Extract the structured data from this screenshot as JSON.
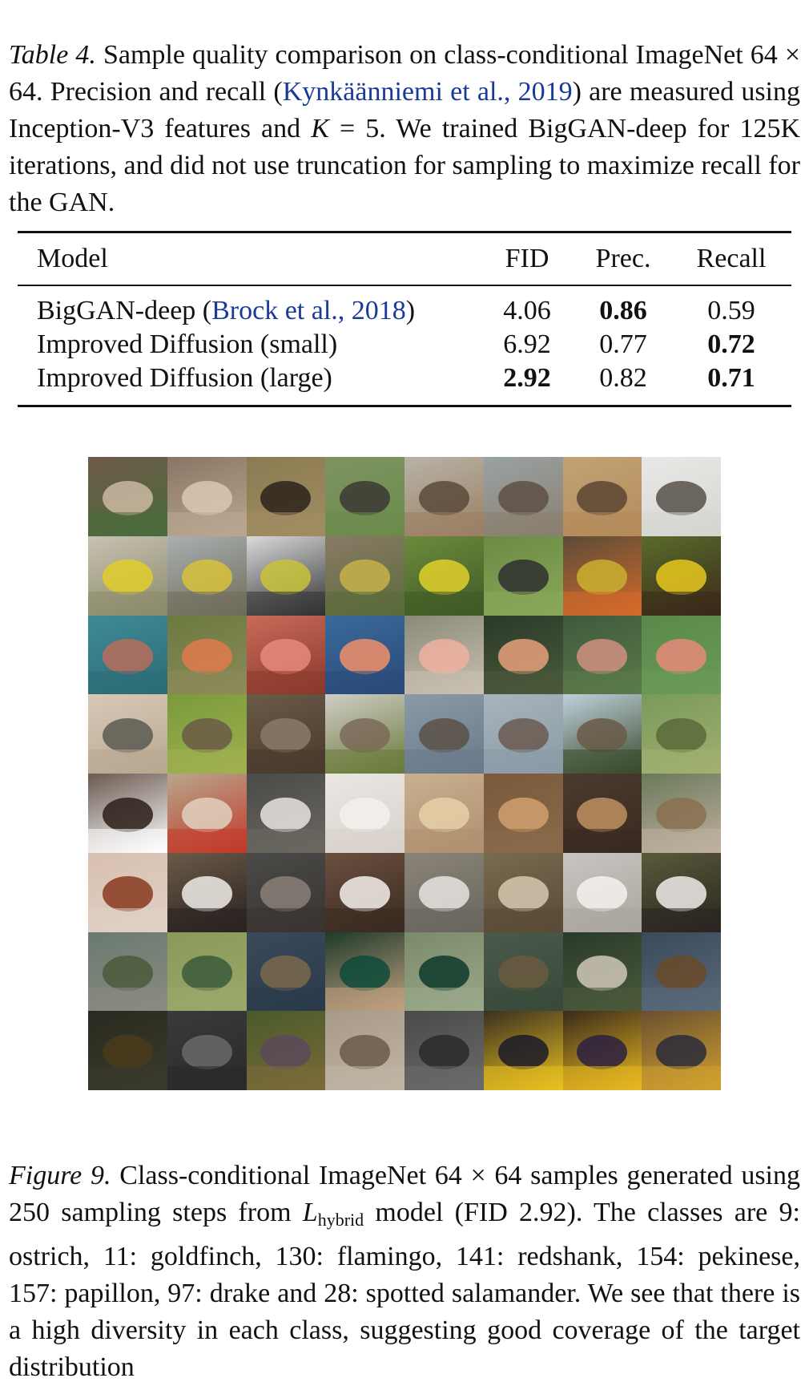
{
  "table_caption": {
    "label": "Table 4.",
    "text_1": " Sample quality comparison on class-conditional ImageNet 64 × 64. Precision and recall (",
    "citation": "Kynkäänniemi et al., 2019",
    "text_2": ") are measured using Inception-V3 features and ",
    "k_var": "K",
    "text_3": " = 5. We trained BigGAN-deep for 125K iterations, and did not use truncation for sampling to maximize recall for the GAN."
  },
  "table": {
    "headers": {
      "model": "Model",
      "fid": "FID",
      "prec": "Prec.",
      "recall": "Recall"
    },
    "rows": [
      {
        "model": "BigGAN-deep (",
        "citation": "Brock et al., 2018",
        "model_suffix": ")",
        "fid": "4.06",
        "prec": "0.86",
        "recall": "0.59"
      },
      {
        "model": "Improved Diffusion (small)",
        "citation": "",
        "model_suffix": "",
        "fid": "6.92",
        "prec": "0.77",
        "recall": "0.72"
      },
      {
        "model": "Improved Diffusion (large)",
        "citation": "",
        "model_suffix": "",
        "fid": "2.92",
        "prec": "0.82",
        "recall": "0.71"
      }
    ],
    "bold": [
      [
        "prec"
      ],
      [
        "recall"
      ],
      [
        "fid",
        "recall"
      ]
    ]
  },
  "sample_grid": {
    "rows": [
      {
        "class": "ostrich",
        "colors": [
          [
            "#6e5a48",
            "#cdb9a2",
            "#4a6b3c"
          ],
          [
            "#8a7564",
            "#d9c7b4",
            "#b9a891"
          ],
          [
            "#8c7a52",
            "#2a221a",
            "#a08d62"
          ],
          [
            "#7f9461",
            "#3b3834",
            "#6b8b4c"
          ],
          [
            "#b8b3a8",
            "#5a4a3a",
            "#9b7f62"
          ],
          [
            "#9aa2a4",
            "#5e4f45",
            "#8a7f70"
          ],
          [
            "#c2a275",
            "#5b4533",
            "#b48b5a"
          ],
          [
            "#e8e8e6",
            "#565048",
            "#d5d5d2"
          ]
        ]
      },
      {
        "class": "goldfinch",
        "colors": [
          [
            "#c7c2b2",
            "#e2cc2c",
            "#8b8a6a"
          ],
          [
            "#a9b0b1",
            "#d8c23b",
            "#6f6b5a"
          ],
          [
            "#d9dadb",
            "#c9c23a",
            "#333333"
          ],
          [
            "#8a7a66",
            "#c4b34a",
            "#5a6b3a"
          ],
          [
            "#6d8b3c",
            "#e2d02c",
            "#3f5a25"
          ],
          [
            "#6b8b44",
            "#2f2f2f",
            "#88a85a"
          ],
          [
            "#5c4c38",
            "#c9b030",
            "#d46a2a"
          ],
          [
            "#5a6b2c",
            "#e8c81e",
            "#3a2a1a"
          ]
        ]
      },
      {
        "class": "flamingo",
        "colors": [
          [
            "#3f8a96",
            "#b86c5c",
            "#2c6c76"
          ],
          [
            "#6b7a3f",
            "#e07a4c",
            "#8c8a5a"
          ],
          [
            "#c96a5a",
            "#e88a7a",
            "#8a3a2c"
          ],
          [
            "#3a6a9a",
            "#f0906a",
            "#2a4a7a"
          ],
          [
            "#8a8a7a",
            "#f0b0a0",
            "#c9c0b0"
          ],
          [
            "#2a3a2a",
            "#e8a07a",
            "#4a5a3a"
          ],
          [
            "#3f5a3c",
            "#d09080",
            "#5a7a4a"
          ],
          [
            "#5a8a4a",
            "#e88a7a",
            "#6a9a5a"
          ]
        ]
      },
      {
        "class": "redshank",
        "colors": [
          [
            "#d8c9b8",
            "#5a5a52",
            "#b8a890"
          ],
          [
            "#7a9a3a",
            "#6a5a48",
            "#a0b050"
          ],
          [
            "#6a5a48",
            "#8a7a68",
            "#4a3a2c"
          ],
          [
            "#d0cdc6",
            "#7a6a58",
            "#6a7a3a"
          ],
          [
            "#8a9aa8",
            "#5a5048",
            "#6a7a8a"
          ],
          [
            "#a8b4bc",
            "#6a5a50",
            "#8a9aa6"
          ],
          [
            "#c0d0dc",
            "#6a5a48",
            "#3a4a2a"
          ],
          [
            "#7a9a5a",
            "#5a6a3a",
            "#a0b070"
          ]
        ]
      },
      {
        "class": "pekinese",
        "colors": [
          [
            "#6a5a50",
            "#2a1e18",
            "#ffffff"
          ],
          [
            "#b8a68c",
            "#e0d2c0",
            "#c23a2a"
          ],
          [
            "#4a4a48",
            "#e8e4e0",
            "#6a6860"
          ],
          [
            "#eae6e2",
            "#f4f0ec",
            "#d8d2cc"
          ],
          [
            "#c8b090",
            "#e8d0a8",
            "#b09070"
          ],
          [
            "#7a5a3a",
            "#d0a070",
            "#8a6a4a"
          ],
          [
            "#4a3a30",
            "#c09060",
            "#3a2a20"
          ],
          [
            "#6a7a5a",
            "#8a7050",
            "#c0b0a0"
          ]
        ]
      },
      {
        "class": "papillon",
        "colors": [
          [
            "#d8c0b0",
            "#8a3a20",
            "#e0d0c4"
          ],
          [
            "#6a5a48",
            "#f0ece8",
            "#2a2220"
          ],
          [
            "#4a4a48",
            "#8a8078",
            "#3a3430"
          ],
          [
            "#6a5040",
            "#f4f0ec",
            "#3a2a20"
          ],
          [
            "#8a8478",
            "#e8e4e0",
            "#6a665e"
          ],
          [
            "#7a6a50",
            "#d8c8b0",
            "#5a4a36"
          ],
          [
            "#c8c4c0",
            "#f4f2ee",
            "#aaa69e"
          ],
          [
            "#5a5a3a",
            "#f0ecea",
            "#2a2420"
          ]
        ]
      },
      {
        "class": "drake",
        "colors": [
          [
            "#6a7a70",
            "#4a5a3a",
            "#8a8a80"
          ],
          [
            "#8a9a5a",
            "#3a5a3a",
            "#9aa86a"
          ],
          [
            "#3a4a5a",
            "#7a6a4a",
            "#2a3a4a"
          ],
          [
            "#1e3a2a",
            "#0e4a3a",
            "#c0a080"
          ],
          [
            "#7a8a6a",
            "#0e3a2a",
            "#9aa88a"
          ],
          [
            "#4a5a4a",
            "#6a5a40",
            "#3a4a3a"
          ],
          [
            "#2a3a2a",
            "#d0c8b8",
            "#4a5a3a"
          ],
          [
            "#3a4a5a",
            "#6a4a2a",
            "#5a6a7a"
          ]
        ]
      },
      {
        "class": "spotted salamander",
        "colors": [
          [
            "#2a2a20",
            "#4a3a1a",
            "#3a3a2c"
          ],
          [
            "#3a3a3a",
            "#6a6a6a",
            "#2a2a2a"
          ],
          [
            "#4a5a2a",
            "#5a4a5a",
            "#7a6a3a"
          ],
          [
            "#a89a88",
            "#6a5a4a",
            "#c0b4a4"
          ],
          [
            "#4a4a4a",
            "#2a2a2a",
            "#6a6a6a"
          ],
          [
            "#3a3020",
            "#1a1a2a",
            "#e8c020"
          ],
          [
            "#3a2a1a",
            "#2a2040",
            "#e8b820"
          ],
          [
            "#6a5030",
            "#2a2a3a",
            "#d0a030"
          ]
        ]
      }
    ]
  },
  "figure_caption": {
    "label": "Figure 9.",
    "text_1": " Class-conditional ImageNet 64 × 64 samples generated using 250 sampling steps from ",
    "l_var": "L",
    "l_sub": "hybrid",
    "text_2": " model (FID 2.92). The classes are 9: ostrich, 11: goldfinch, 130: flamingo, 141: redshank, 154: pekinese, 157: papillon, 97: drake and 28: spotted salamander. We see that there is a high diversity in each class, suggesting good coverage of the target distribution"
  }
}
